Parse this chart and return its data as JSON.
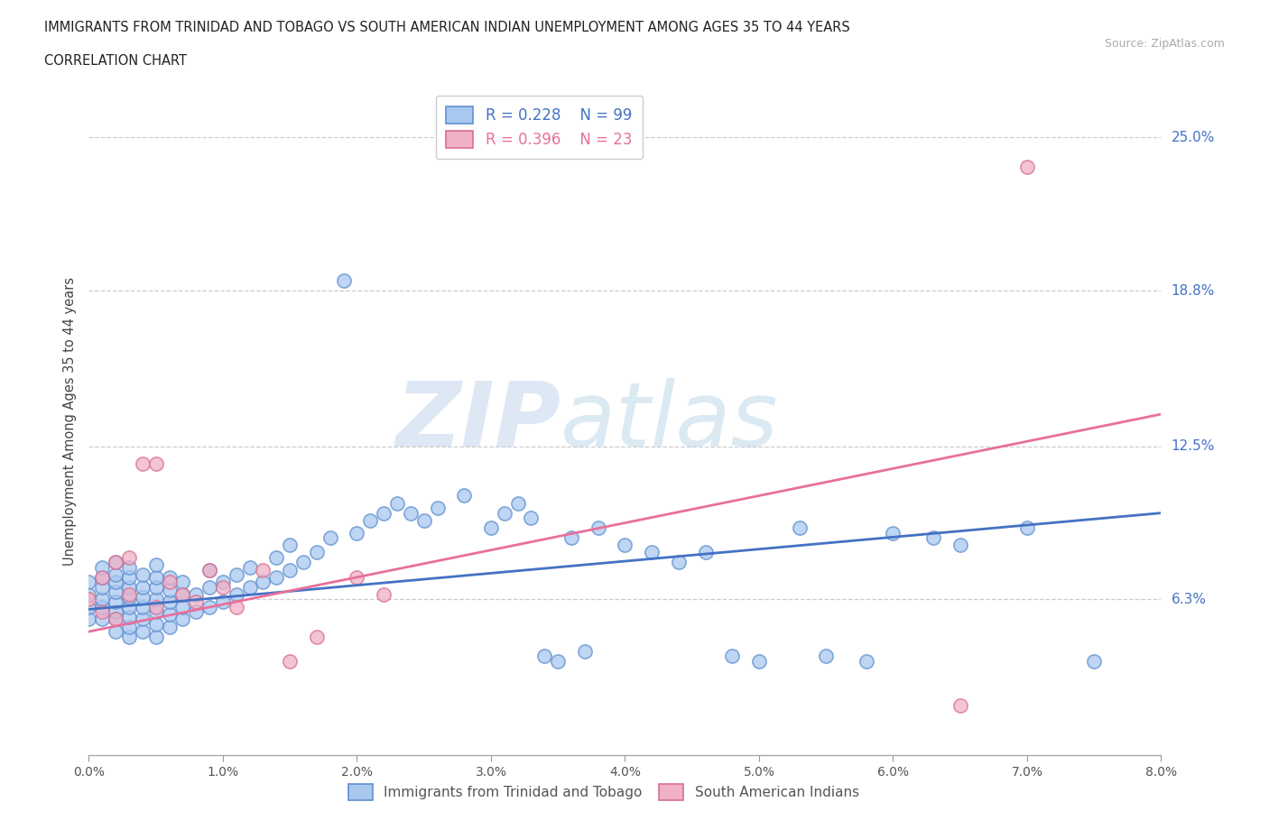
{
  "title_line1": "IMMIGRANTS FROM TRINIDAD AND TOBAGO VS SOUTH AMERICAN INDIAN UNEMPLOYMENT AMONG AGES 35 TO 44 YEARS",
  "title_line2": "CORRELATION CHART",
  "source_text": "Source: ZipAtlas.com",
  "ylabel": "Unemployment Among Ages 35 to 44 years",
  "xlim": [
    0.0,
    0.08
  ],
  "ylim": [
    0.0,
    0.27
  ],
  "xtick_labels": [
    "0.0%",
    "1.0%",
    "2.0%",
    "3.0%",
    "4.0%",
    "5.0%",
    "6.0%",
    "7.0%",
    "8.0%"
  ],
  "xtick_vals": [
    0.0,
    0.01,
    0.02,
    0.03,
    0.04,
    0.05,
    0.06,
    0.07,
    0.08
  ],
  "ytick_labels": [
    "6.3%",
    "12.5%",
    "18.8%",
    "25.0%"
  ],
  "ytick_vals": [
    0.063,
    0.125,
    0.188,
    0.25
  ],
  "hline_vals": [
    0.063,
    0.125,
    0.188,
    0.25
  ],
  "legend_r1": "R = 0.228",
  "legend_n1": "N = 99",
  "legend_r2": "R = 0.396",
  "legend_n2": "N = 23",
  "color_blue": "#a8c8f0",
  "color_pink": "#f0b0c8",
  "color_blue_edge": "#6090d0",
  "color_pink_edge": "#d87090",
  "color_blue_line": "#4472c4",
  "color_pink_line": "#e8709a",
  "watermark_color": "#dce8f8",
  "bg_color": "#ffffff",
  "grid_color": "#cccccc",
  "blue_scatter_x": [
    0.0,
    0.0,
    0.0,
    0.0,
    0.001,
    0.001,
    0.001,
    0.001,
    0.001,
    0.001,
    0.002,
    0.002,
    0.002,
    0.002,
    0.002,
    0.002,
    0.002,
    0.002,
    0.003,
    0.003,
    0.003,
    0.003,
    0.003,
    0.003,
    0.003,
    0.003,
    0.004,
    0.004,
    0.004,
    0.004,
    0.004,
    0.004,
    0.005,
    0.005,
    0.005,
    0.005,
    0.005,
    0.005,
    0.005,
    0.006,
    0.006,
    0.006,
    0.006,
    0.006,
    0.007,
    0.007,
    0.007,
    0.007,
    0.008,
    0.008,
    0.009,
    0.009,
    0.009,
    0.01,
    0.01,
    0.011,
    0.011,
    0.012,
    0.012,
    0.013,
    0.014,
    0.014,
    0.015,
    0.015,
    0.016,
    0.017,
    0.018,
    0.019,
    0.02,
    0.021,
    0.022,
    0.023,
    0.024,
    0.025,
    0.026,
    0.028,
    0.03,
    0.031,
    0.032,
    0.033,
    0.034,
    0.035,
    0.036,
    0.037,
    0.038,
    0.04,
    0.042,
    0.044,
    0.046,
    0.048,
    0.05,
    0.053,
    0.055,
    0.058,
    0.06,
    0.063,
    0.065,
    0.07,
    0.075
  ],
  "blue_scatter_y": [
    0.055,
    0.06,
    0.065,
    0.07,
    0.055,
    0.06,
    0.063,
    0.068,
    0.072,
    0.076,
    0.05,
    0.055,
    0.058,
    0.062,
    0.066,
    0.07,
    0.073,
    0.078,
    0.048,
    0.052,
    0.056,
    0.06,
    0.064,
    0.068,
    0.072,
    0.076,
    0.05,
    0.055,
    0.06,
    0.064,
    0.068,
    0.073,
    0.048,
    0.053,
    0.058,
    0.063,
    0.068,
    0.072,
    0.077,
    0.052,
    0.057,
    0.062,
    0.067,
    0.072,
    0.055,
    0.06,
    0.065,
    0.07,
    0.058,
    0.065,
    0.06,
    0.068,
    0.075,
    0.062,
    0.07,
    0.065,
    0.073,
    0.068,
    0.076,
    0.07,
    0.072,
    0.08,
    0.075,
    0.085,
    0.078,
    0.082,
    0.088,
    0.192,
    0.09,
    0.095,
    0.098,
    0.102,
    0.098,
    0.095,
    0.1,
    0.105,
    0.092,
    0.098,
    0.102,
    0.096,
    0.04,
    0.038,
    0.088,
    0.042,
    0.092,
    0.085,
    0.082,
    0.078,
    0.082,
    0.04,
    0.038,
    0.092,
    0.04,
    0.038,
    0.09,
    0.088,
    0.085,
    0.092,
    0.038
  ],
  "pink_scatter_x": [
    0.0,
    0.001,
    0.001,
    0.002,
    0.002,
    0.003,
    0.003,
    0.004,
    0.005,
    0.005,
    0.006,
    0.007,
    0.008,
    0.009,
    0.01,
    0.011,
    0.013,
    0.015,
    0.017,
    0.02,
    0.022,
    0.065,
    0.07
  ],
  "pink_scatter_y": [
    0.063,
    0.058,
    0.072,
    0.055,
    0.078,
    0.065,
    0.08,
    0.118,
    0.06,
    0.118,
    0.07,
    0.065,
    0.062,
    0.075,
    0.068,
    0.06,
    0.075,
    0.038,
    0.048,
    0.072,
    0.065,
    0.02,
    0.238
  ],
  "blue_line_x": [
    0.0,
    0.08
  ],
  "blue_line_y": [
    0.059,
    0.098
  ],
  "pink_line_x": [
    0.0,
    0.08
  ],
  "pink_line_y": [
    0.05,
    0.138
  ]
}
